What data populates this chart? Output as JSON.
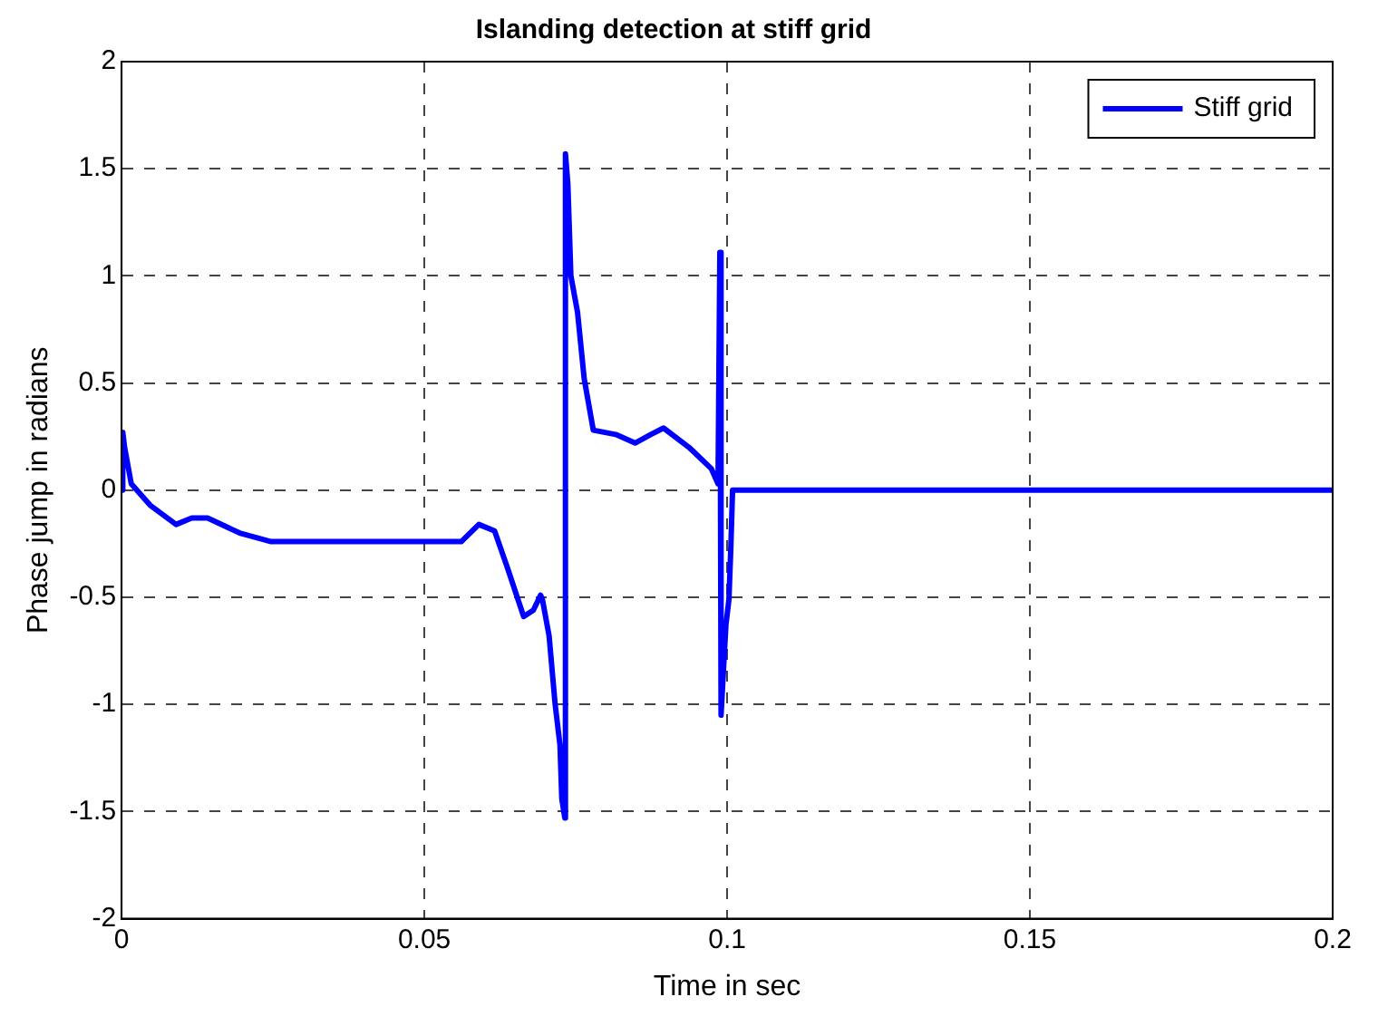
{
  "chart_data": {
    "type": "line",
    "title": "Islanding detection at stiff grid",
    "xlabel": "Time in sec",
    "ylabel": "Phase jump in radians",
    "xlim": [
      0,
      0.2
    ],
    "xticks": [
      0,
      0.05,
      0.1,
      0.15,
      0.2
    ],
    "ylim": [
      -2,
      2
    ],
    "yticks": [
      -2,
      -1.5,
      -1,
      -0.5,
      0,
      0.5,
      1,
      1.5,
      2
    ],
    "grid": true,
    "legend": "top right",
    "marker": "none",
    "line_style": "solid",
    "series": [
      {
        "name": "Stiff grid",
        "color": "#0000ff",
        "x": [
          0,
          0.0002,
          0.0005,
          0.0016,
          0.0047,
          0.009,
          0.0116,
          0.0142,
          0.0195,
          0.0247,
          0.0561,
          0.059,
          0.0616,
          0.0637,
          0.0664,
          0.068,
          0.0692,
          0.0695,
          0.0706,
          0.0716,
          0.0724,
          0.0727,
          0.0732,
          0.0733,
          0.0737,
          0.0742,
          0.0753,
          0.0764,
          0.0779,
          0.0816,
          0.0848,
          0.0874,
          0.0895,
          0.0937,
          0.0974,
          0.0985,
          0.0988,
          0.099,
          0.0998,
          0.1003,
          0.1006,
          0.1009,
          0.2
        ],
        "values": [
          0,
          0.27,
          0.2,
          0.03,
          -0.07,
          -0.16,
          -0.13,
          -0.13,
          -0.2,
          -0.24,
          -0.24,
          -0.16,
          -0.19,
          -0.36,
          -0.59,
          -0.56,
          -0.49,
          -0.51,
          -0.68,
          -1.0,
          -1.19,
          -1.44,
          -1.53,
          1.57,
          1.43,
          1.0,
          0.83,
          0.52,
          0.28,
          0.26,
          0.22,
          0.26,
          0.29,
          0.2,
          0.1,
          0.03,
          1.11,
          -1.05,
          -0.63,
          -0.51,
          -0.28,
          0,
          0
        ]
      }
    ]
  }
}
